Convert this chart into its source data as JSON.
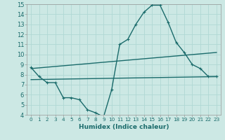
{
  "xlabel": "Humidex (Indice chaleur)",
  "bg_color": "#cce8e4",
  "grid_color": "#b0d8d4",
  "line_color": "#1a6b6b",
  "x_range": [
    -0.5,
    23.5
  ],
  "y_range": [
    4,
    15
  ],
  "yticks": [
    4,
    5,
    6,
    7,
    8,
    9,
    10,
    11,
    12,
    13,
    14,
    15
  ],
  "xticks": [
    0,
    1,
    2,
    3,
    4,
    5,
    6,
    7,
    8,
    9,
    10,
    11,
    12,
    13,
    14,
    15,
    16,
    17,
    18,
    19,
    20,
    21,
    22,
    23
  ],
  "line1_x": [
    0,
    1,
    2,
    3,
    4,
    5,
    6,
    7,
    8,
    9,
    10,
    11,
    12,
    13,
    14,
    15,
    16,
    17,
    18,
    19,
    20,
    21,
    22,
    23
  ],
  "line1_y": [
    8.7,
    7.8,
    7.2,
    7.2,
    5.7,
    5.7,
    5.5,
    4.5,
    4.2,
    3.8,
    6.5,
    11.0,
    11.5,
    13.0,
    14.2,
    14.9,
    14.9,
    13.2,
    11.2,
    10.2,
    9.0,
    8.6,
    7.8,
    7.8
  ],
  "line2_x": [
    0,
    23
  ],
  "line2_y": [
    7.5,
    7.8
  ],
  "line3_x": [
    0,
    23
  ],
  "line3_y": [
    8.6,
    10.2
  ],
  "xlabel_fontsize": 6.5,
  "tick_fontsize_x": 5.2,
  "tick_fontsize_y": 6.0,
  "linewidth": 1.0,
  "markersize": 3.5,
  "markeredgewidth": 0.8
}
